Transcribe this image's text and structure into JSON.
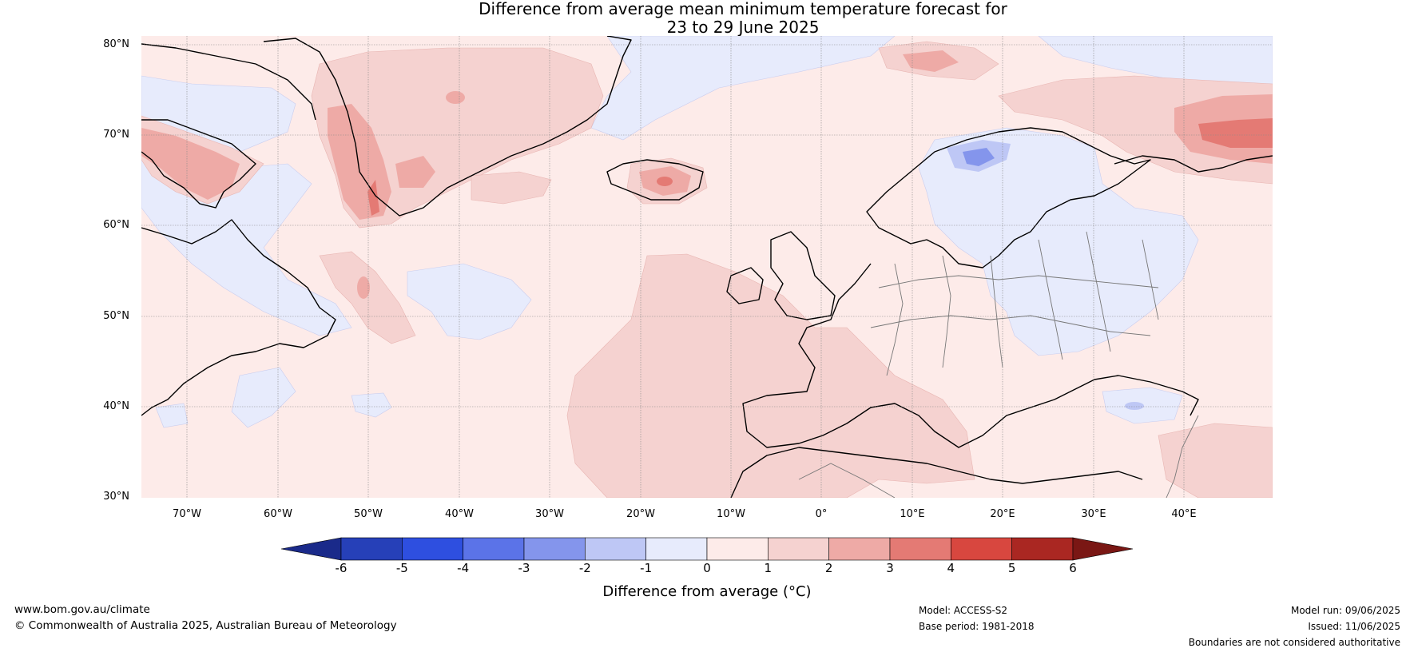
{
  "title_line1": "Difference from average mean minimum temperature forecast for",
  "title_line2": "23 to 29 June 2025",
  "lat_labels": [
    "80°N",
    "70°N",
    "60°N",
    "50°N",
    "40°N",
    "30°N"
  ],
  "lon_labels": [
    "70°W",
    "60°W",
    "50°W",
    "40°W",
    "30°W",
    "20°W",
    "10°W",
    "0°",
    "10°E",
    "20°E",
    "30°E",
    "40°E"
  ],
  "colorbar": {
    "title": "Difference from average (°C)",
    "ticks": [
      "-6",
      "-5",
      "-4",
      "-3",
      "-2",
      "-1",
      "0",
      "1",
      "2",
      "3",
      "4",
      "5",
      "6"
    ],
    "colors": [
      "#1a2a8a",
      "#2640b8",
      "#2e4fe0",
      "#5b73e8",
      "#8495ec",
      "#bec7f5",
      "#e7ebfc",
      "#fdebe9",
      "#f5d2d0",
      "#eeaaa6",
      "#e47a74",
      "#d8473f",
      "#aa2722",
      "#7a1714"
    ]
  },
  "footer": {
    "website": "www.bom.gov.au/climate",
    "copyright": "© Commonwealth of Australia 2025, Australian Bureau of Meteorology",
    "model": "Model: ACCESS-S2",
    "base_period": "Base period: 1981-2018",
    "model_run": "Model run: 09/06/2025",
    "issued": "Issued: 11/06/2025",
    "boundaries": "Boundaries are not considered authoritative"
  }
}
